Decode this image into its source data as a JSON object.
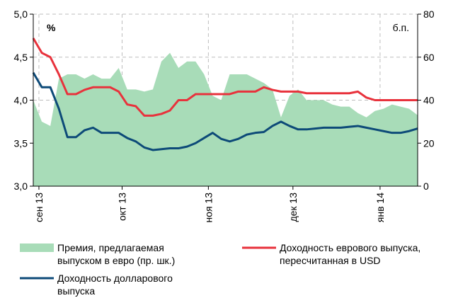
{
  "chart_data": {
    "type": "line",
    "y_unit": "%",
    "y2_unit": "б.п.",
    "xlim": [
      0,
      45
    ],
    "xticks": [
      {
        "value": 0.66,
        "label": "сен 13"
      },
      {
        "value": 10.4,
        "label": "окт 13"
      },
      {
        "value": 20.5,
        "label": "ноя 13"
      },
      {
        "value": 30.4,
        "label": "дек 13"
      },
      {
        "value": 40.6,
        "label": "янв 14"
      }
    ],
    "ylim": [
      3,
      5
    ],
    "yticks": [
      {
        "value": 3,
        "label": "3,0"
      },
      {
        "value": 3.5,
        "label": "3,5"
      },
      {
        "value": 4,
        "label": "4,0"
      },
      {
        "value": 4.5,
        "label": "4,5"
      },
      {
        "value": 5,
        "label": "5,0"
      }
    ],
    "y2lim": [
      0,
      80
    ],
    "y2ticks": [
      0,
      20,
      40,
      60,
      80
    ],
    "grid": true,
    "series": [
      {
        "name": "Премия, предлагаемая\nвыпуском в евро (пр. шк.)",
        "kind": "area",
        "axis": "y2",
        "color": "#a8dcb8",
        "values": [
          40,
          30,
          28,
          50,
          52,
          52,
          50,
          52,
          50,
          50,
          55,
          45,
          45,
          44,
          45,
          58,
          62,
          55,
          58,
          58,
          52,
          42,
          40,
          52,
          52,
          52,
          50,
          48,
          45,
          32,
          42,
          45,
          40,
          40,
          40,
          38,
          37,
          37,
          34,
          32,
          35,
          36,
          38,
          37,
          36,
          33
        ]
      },
      {
        "name": "Доходность долларового\nвыпуска",
        "kind": "line",
        "color": "#0d4a78",
        "values": [
          4.32,
          4.15,
          4.15,
          3.9,
          3.57,
          3.57,
          3.65,
          3.68,
          3.62,
          3.62,
          3.62,
          3.56,
          3.52,
          3.45,
          3.42,
          3.43,
          3.44,
          3.44,
          3.46,
          3.5,
          3.56,
          3.62,
          3.55,
          3.52,
          3.55,
          3.6,
          3.62,
          3.63,
          3.7,
          3.75,
          3.7,
          3.66,
          3.66,
          3.67,
          3.68,
          3.68,
          3.68,
          3.69,
          3.7,
          3.68,
          3.66,
          3.64,
          3.62,
          3.62,
          3.64,
          3.67
        ]
      },
      {
        "name": "Доходность еврового выпуска,\nпересчитанная в USD",
        "kind": "line",
        "color": "#e8323c",
        "values": [
          4.72,
          4.55,
          4.5,
          4.3,
          4.07,
          4.07,
          4.12,
          4.15,
          4.15,
          4.15,
          4.1,
          3.95,
          3.93,
          3.82,
          3.82,
          3.84,
          3.88,
          4.0,
          4.0,
          4.07,
          4.07,
          4.07,
          4.07,
          4.07,
          4.1,
          4.1,
          4.1,
          4.15,
          4.12,
          4.1,
          4.1,
          4.1,
          4.08,
          4.08,
          4.08,
          4.08,
          4.08,
          4.08,
          4.1,
          4.03,
          4.0,
          4.0,
          4.0,
          4.0,
          4.0,
          4.0
        ]
      }
    ]
  }
}
